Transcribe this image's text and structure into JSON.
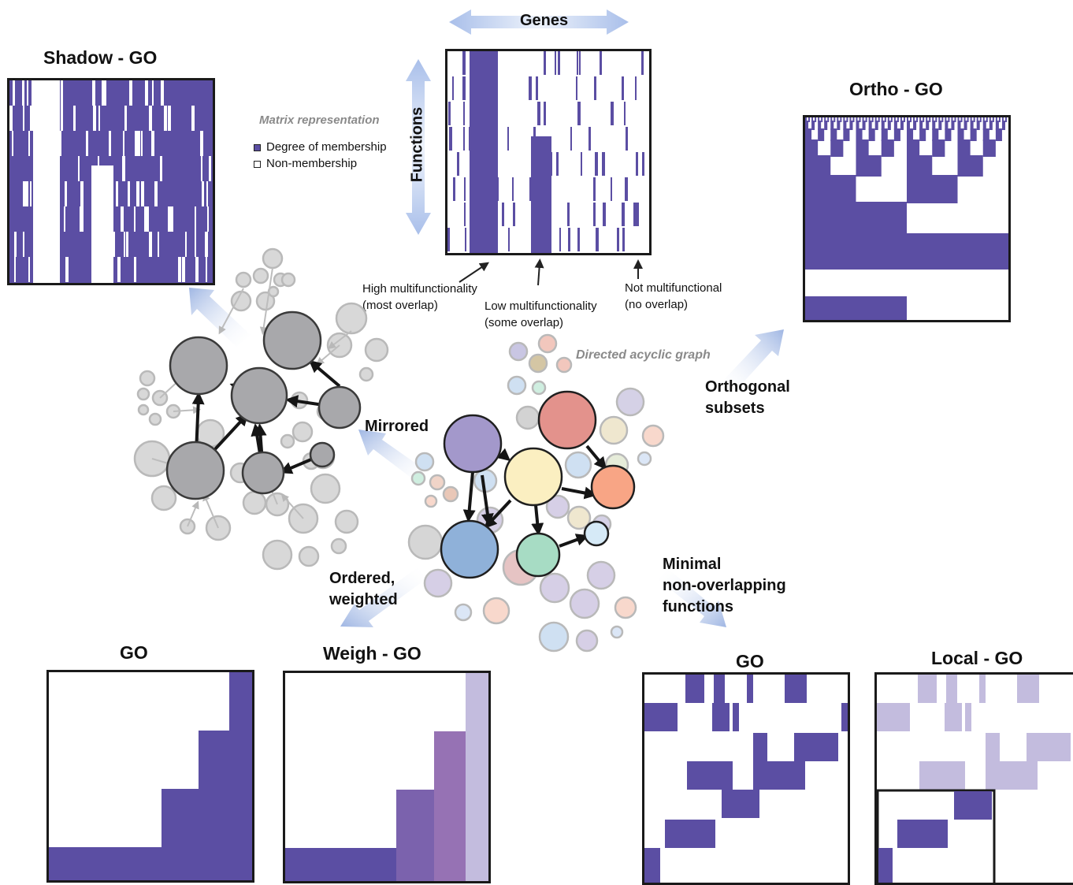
{
  "titles": {
    "shadow_go": "Shadow - GO",
    "ortho_go": "Ortho - GO",
    "go_left": "GO",
    "weigh_go": "Weigh - GO",
    "go_right": "GO",
    "local_go": "Local - GO"
  },
  "axes": {
    "genes": "Genes",
    "functions": "Functions"
  },
  "legend": {
    "title": "Matrix representation",
    "membership": "Degree of membership",
    "non_membership": "Non-membership"
  },
  "annotations": {
    "high_1": "High multifunctionality",
    "high_2": "(most overlap)",
    "low_1": "Low multifunctionality",
    "low_2": "(some overlap)",
    "not_1": "Not multifunctional",
    "not_2": "(no overlap)",
    "dag": "Directed acyclic graph"
  },
  "transforms": {
    "mirrored": "Mirrored",
    "orthogonal_1": "Orthogonal",
    "orthogonal_2": "subsets",
    "ordered_1": "Ordered,",
    "ordered_2": "weighted",
    "minimal_1": "Minimal",
    "minimal_2": "non-overlapping",
    "minimal_3": "functions"
  },
  "colors": {
    "membership": "#5b4ea3",
    "weight_1": "#5b4ea3",
    "weight_2": "#7b62ad",
    "weight_3": "#9672b4",
    "weight_4": "#c3bcde",
    "local_light": "#c3bcde",
    "node_dark": "#a8a8ab",
    "node_light": "#d8d8d8",
    "arrow_blue": "#9fb6e3",
    "dag_nodes": [
      "#a398cb",
      "#e3928c",
      "#fbefc1",
      "#f8a585",
      "#8fb1d9",
      "#a7dcc4"
    ]
  }
}
